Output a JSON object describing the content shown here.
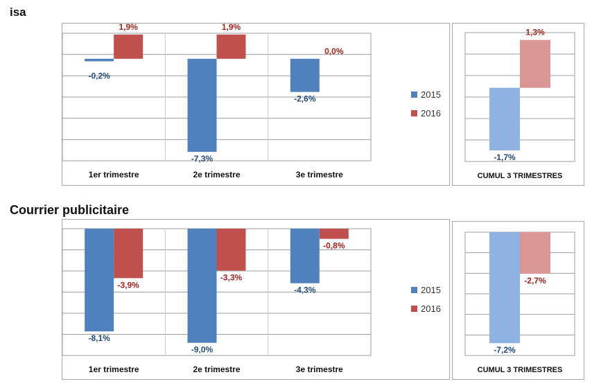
{
  "charts": [
    {
      "title": "isa",
      "legend": [
        {
          "label": "2015",
          "color": "#4f81bd"
        },
        {
          "label": "2016",
          "color": "#c0504d"
        }
      ],
      "chart_data": [
        {
          "type": "bar",
          "categories": [
            "1er trimestre",
            "2e trimestre",
            "3e trimestre"
          ],
          "series": [
            {
              "name": "2015",
              "values": [
                -0.2,
                -7.3,
                -2.6
              ],
              "labels": [
                "-0,2%",
                "-7,3%",
                "-2,6%"
              ],
              "color": "#4f81bd"
            },
            {
              "name": "2016",
              "values": [
                1.9,
                1.9,
                0.0
              ],
              "labels": [
                "1,9%",
                "1,9%",
                "0,0%"
              ],
              "color": "#c0504d"
            }
          ],
          "ylim": [
            -8,
            2
          ],
          "grid": true,
          "legend_position": "right"
        },
        {
          "type": "bar",
          "categories": [
            "CUMUL 3 TRIMESTRES"
          ],
          "series": [
            {
              "name": "2015",
              "values": [
                -1.7
              ],
              "labels": [
                "-1,7%"
              ],
              "color": "#8db3e2"
            },
            {
              "name": "2016",
              "values": [
                1.3
              ],
              "labels": [
                "1,3%"
              ],
              "color": "#da9694"
            }
          ],
          "ylim": [
            -2,
            1.5
          ],
          "grid": true
        }
      ]
    },
    {
      "title": "Courrier publicitaire",
      "legend": [
        {
          "label": "2015",
          "color": "#4f81bd"
        },
        {
          "label": "2016",
          "color": "#c0504d"
        }
      ],
      "chart_data": [
        {
          "type": "bar",
          "categories": [
            "1er trimestre",
            "2e trimestre",
            "3e trimestre"
          ],
          "series": [
            {
              "name": "2015",
              "values": [
                -8.1,
                -9.0,
                -4.3
              ],
              "labels": [
                "-8,1%",
                "-9,0%",
                "-4,3%"
              ],
              "color": "#4f81bd"
            },
            {
              "name": "2016",
              "values": [
                -3.9,
                -3.3,
                -0.8
              ],
              "labels": [
                "-3,9%",
                "-3,3%",
                "-0,8%"
              ],
              "color": "#c0504d"
            }
          ],
          "ylim": [
            -10,
            0
          ],
          "grid": true,
          "legend_position": "right"
        },
        {
          "type": "bar",
          "categories": [
            "CUMUL 3 TRIMESTRES"
          ],
          "series": [
            {
              "name": "2015",
              "values": [
                -7.2
              ],
              "labels": [
                "-7,2%"
              ],
              "color": "#8db3e2"
            },
            {
              "name": "2016",
              "values": [
                -2.7
              ],
              "labels": [
                "-2,7%"
              ],
              "color": "#da9694"
            }
          ],
          "ylim": [
            -8,
            0
          ],
          "grid": true
        }
      ]
    }
  ]
}
